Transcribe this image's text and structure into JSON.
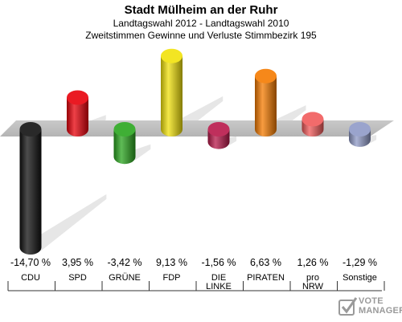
{
  "chart_data": {
    "type": "bar",
    "title": "Stadt Mülheim an der Ruhr",
    "subtitle": "Landtagswahl 2012 - Landtagswahl 2010",
    "subtitle2": "Zweitstimmen Gewinne und Verluste Stimmbezirk 195",
    "categories": [
      [
        "CDU"
      ],
      [
        "SPD"
      ],
      [
        "GRÜNE"
      ],
      [
        "FDP"
      ],
      [
        "DIE",
        "LINKE"
      ],
      [
        "PIRATEN"
      ],
      [
        "pro",
        "NRW"
      ],
      [
        "Sonstige"
      ]
    ],
    "values": [
      -14.7,
      3.95,
      -3.42,
      9.13,
      -1.56,
      6.63,
      1.26,
      -1.29
    ],
    "value_labels": [
      "-14,70 %",
      "3,95 %",
      "-3,42 %",
      "9,13 %",
      "-1,56 %",
      "6,63 %",
      "1,26 %",
      "-1,29 %"
    ],
    "colors": [
      "#111111",
      "#e8000a",
      "#2aa61e",
      "#f2e20b",
      "#b8184a",
      "#f57b00",
      "#f05a5a",
      "#8f9ac7"
    ],
    "ylim": [
      -14.7,
      9.13
    ]
  },
  "logo": {
    "line1": "VOTE",
    "line2": "MANAGER",
    "icon": "checkmark-icon"
  }
}
